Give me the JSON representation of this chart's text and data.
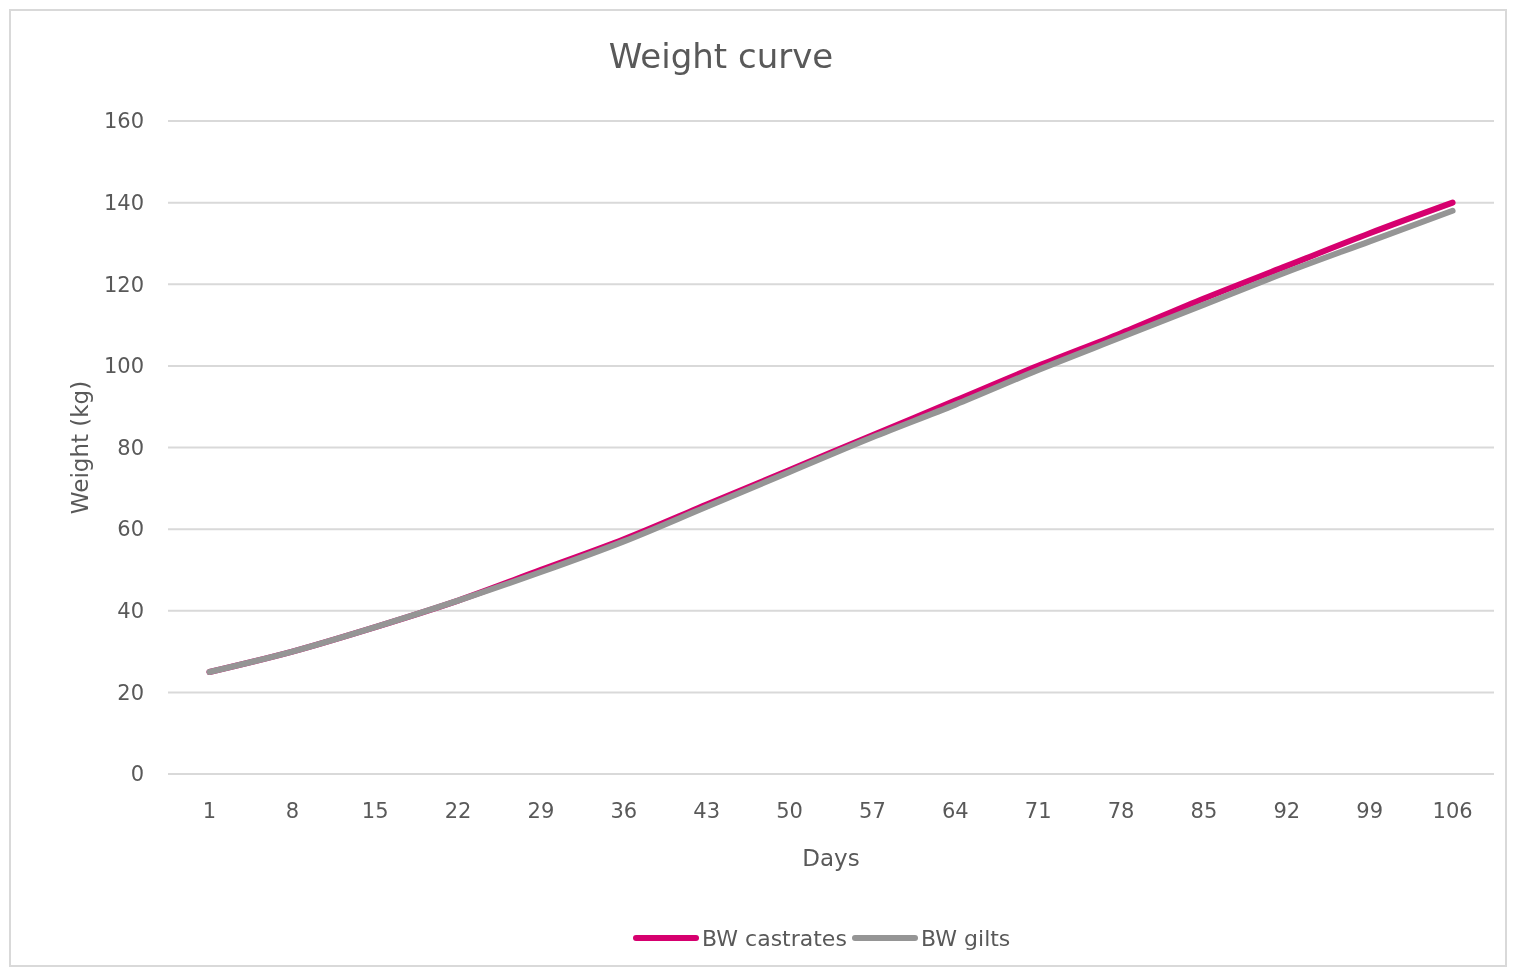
{
  "chart_data": {
    "type": "line",
    "title": "Weight curve",
    "xlabel": "Days",
    "ylabel": "Weight (kg)",
    "categories": [
      "1",
      "8",
      "15",
      "22",
      "29",
      "36",
      "43",
      "50",
      "57",
      "64",
      "71",
      "78",
      "85",
      "92",
      "99",
      "106"
    ],
    "series": [
      {
        "name": "BW castrates",
        "color": "#d6006f",
        "values": [
          25,
          30,
          36,
          42.5,
          50,
          57.5,
          66,
          74.5,
          83,
          91.5,
          100,
          108,
          116.5,
          124.5,
          132.5,
          140
        ]
      },
      {
        "name": "BW gilts",
        "color": "#959595",
        "values": [
          25,
          30,
          36,
          42.5,
          49.5,
          57,
          65.5,
          74,
          82.5,
          90.5,
          99,
          107,
          115,
          123,
          130.5,
          138
        ]
      }
    ],
    "ylim": [
      0,
      160
    ],
    "yticks": [
      0,
      20,
      40,
      60,
      80,
      100,
      120,
      140,
      160
    ],
    "grid": "y",
    "legend": "bottom",
    "marker": "none",
    "line_style": "solid"
  }
}
